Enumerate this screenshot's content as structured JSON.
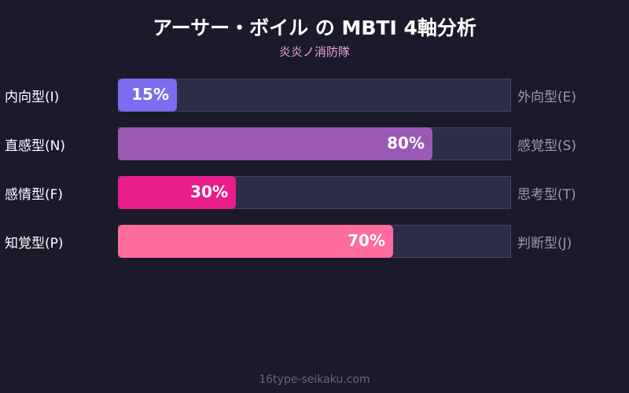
{
  "chart_data": {
    "type": "bar",
    "orientation": "horizontal",
    "title": "アーサー・ボイル の MBTI 4軸分析",
    "subtitle": "炎炎ノ消防隊",
    "xlim": [
      0,
      100
    ],
    "rows": [
      {
        "left": "内向型(I)",
        "right": "外向型(E)",
        "value": 15,
        "label": "15%",
        "color": "#7b6cf0"
      },
      {
        "left": "直感型(N)",
        "right": "感覚型(S)",
        "value": 80,
        "label": "80%",
        "color": "#9b59b6"
      },
      {
        "left": "感情型(F)",
        "right": "思考型(T)",
        "value": 30,
        "label": "30%",
        "color": "#e91e8c"
      },
      {
        "left": "知覚型(P)",
        "right": "判断型(J)",
        "value": 70,
        "label": "70%",
        "color": "#ff6b9d"
      }
    ]
  },
  "footer": "16type-seikaku.com",
  "colors": {
    "background": "#1a1a2b",
    "track": "#2d2d4a"
  }
}
